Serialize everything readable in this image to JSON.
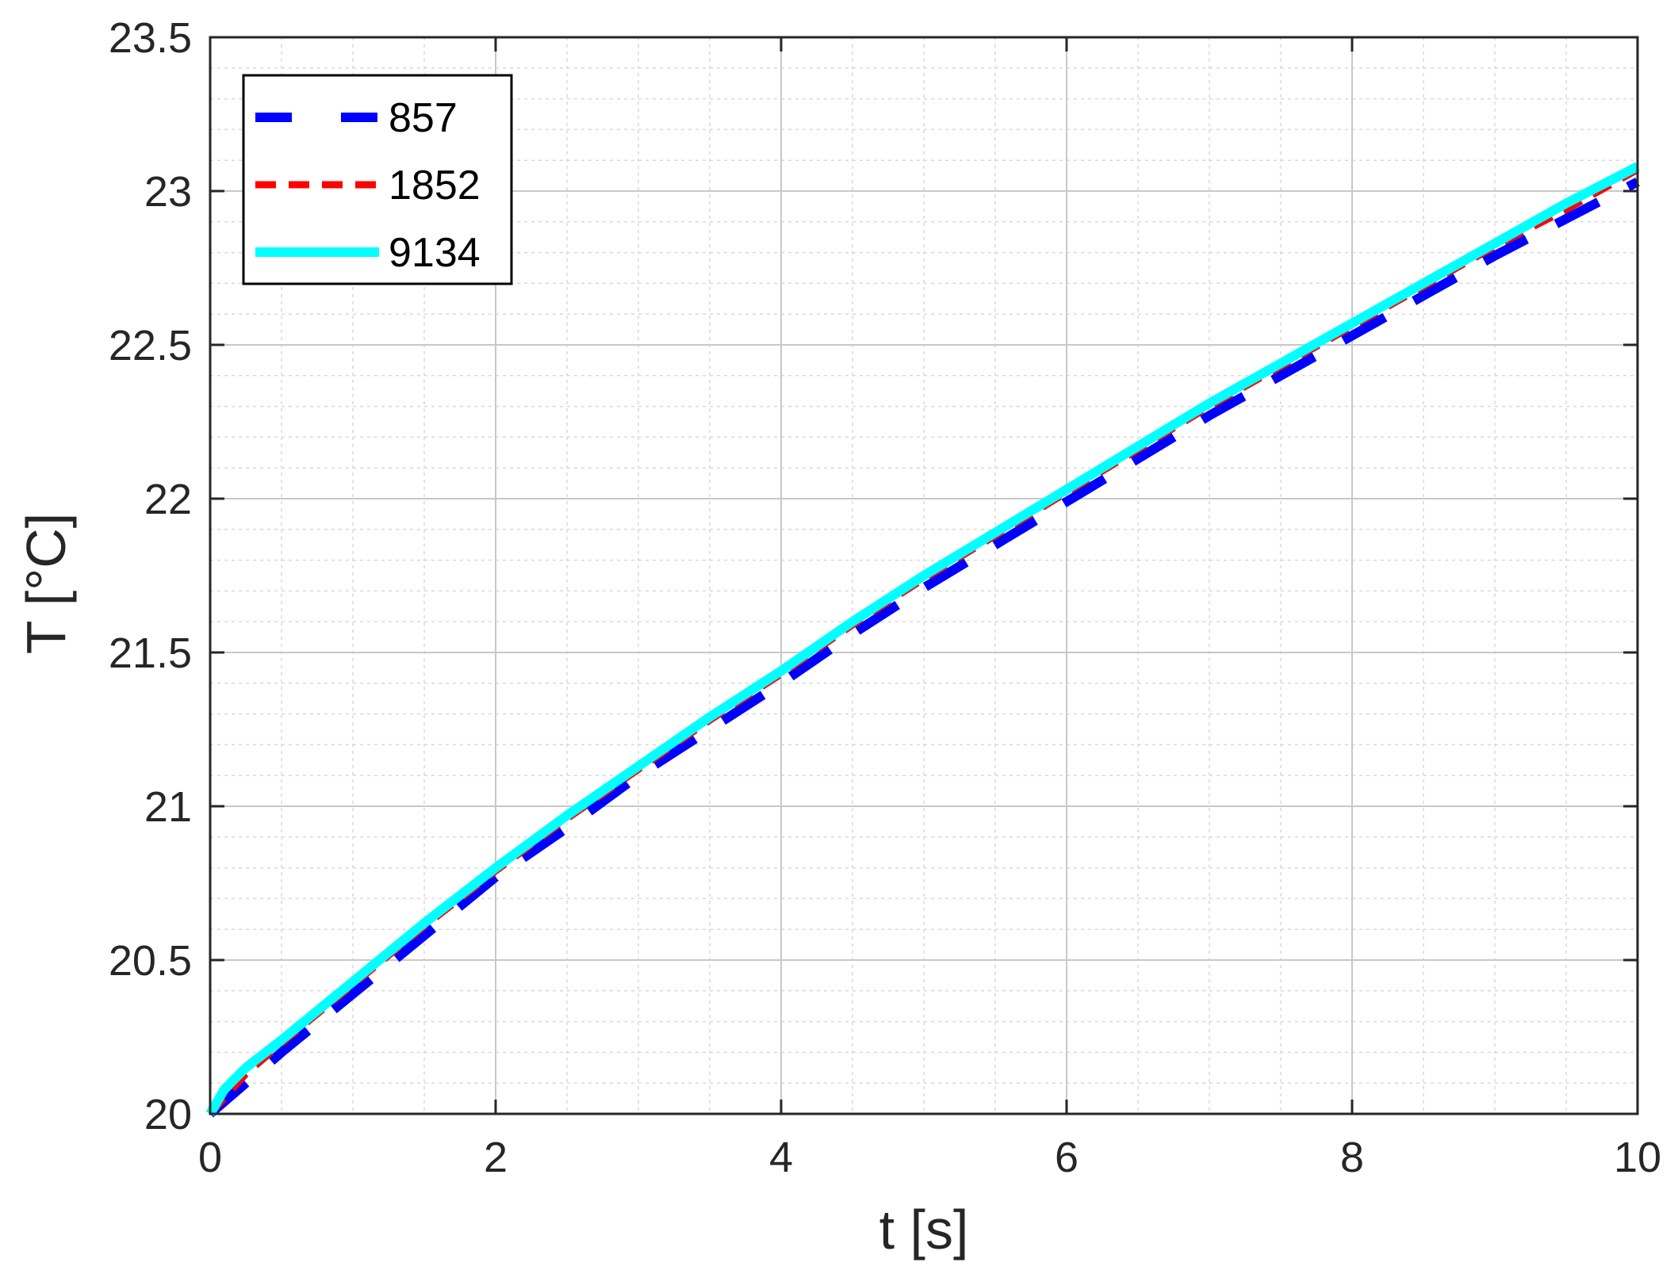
{
  "chart_data": {
    "type": "line",
    "xlabel": "t [s]",
    "ylabel": "T [°C]",
    "xlim": [
      0,
      10
    ],
    "ylim": [
      20,
      23.5
    ],
    "xticks": [
      "0",
      "2",
      "4",
      "6",
      "8",
      "10"
    ],
    "yticks": [
      "20",
      "20.5",
      "21",
      "21.5",
      "22",
      "22.5",
      "23",
      "23.5"
    ],
    "grid": true,
    "minor_grid": true,
    "legend_position": "top-left",
    "series": [
      {
        "name": "857",
        "color": "#0000ff",
        "style": "long-dash",
        "x": [
          0,
          0.5,
          1,
          1.5,
          2,
          2.5,
          3,
          3.5,
          4,
          4.5,
          5,
          5.5,
          6,
          6.5,
          7,
          7.5,
          8,
          8.5,
          9,
          9.5,
          10
        ],
        "y": [
          20.0,
          20.2,
          20.39,
          20.58,
          20.77,
          20.93,
          21.1,
          21.25,
          21.4,
          21.56,
          21.71,
          21.85,
          21.99,
          22.13,
          22.27,
          22.4,
          22.53,
          22.66,
          22.79,
          22.91,
          23.03
        ]
      },
      {
        "name": "1852",
        "color": "#ff0000",
        "style": "dashed",
        "x": [
          0,
          0.25,
          0.5,
          1,
          1.5,
          2,
          2.5,
          3,
          3.5,
          4,
          4.5,
          5,
          5.5,
          6,
          6.5,
          7,
          7.5,
          8,
          8.5,
          9,
          9.5,
          10
        ],
        "y": [
          20.0,
          20.13,
          20.23,
          20.42,
          20.61,
          20.79,
          20.96,
          21.12,
          21.28,
          21.43,
          21.59,
          21.74,
          21.88,
          22.02,
          22.16,
          22.3,
          22.43,
          22.56,
          22.69,
          22.82,
          22.94,
          23.07
        ]
      },
      {
        "name": "9134",
        "color": "#00ffff",
        "style": "solid",
        "x": [
          0,
          0.1,
          0.25,
          0.5,
          1,
          1.5,
          2,
          2.5,
          3,
          3.5,
          4,
          4.5,
          5,
          5.5,
          6,
          6.5,
          7,
          7.5,
          8,
          8.5,
          9,
          9.5,
          10
        ],
        "y": [
          20.0,
          20.08,
          20.15,
          20.24,
          20.43,
          20.62,
          20.8,
          20.97,
          21.13,
          21.29,
          21.44,
          21.6,
          21.75,
          21.89,
          22.03,
          22.17,
          22.31,
          22.44,
          22.57,
          22.7,
          22.83,
          22.96,
          23.08
        ]
      }
    ]
  }
}
